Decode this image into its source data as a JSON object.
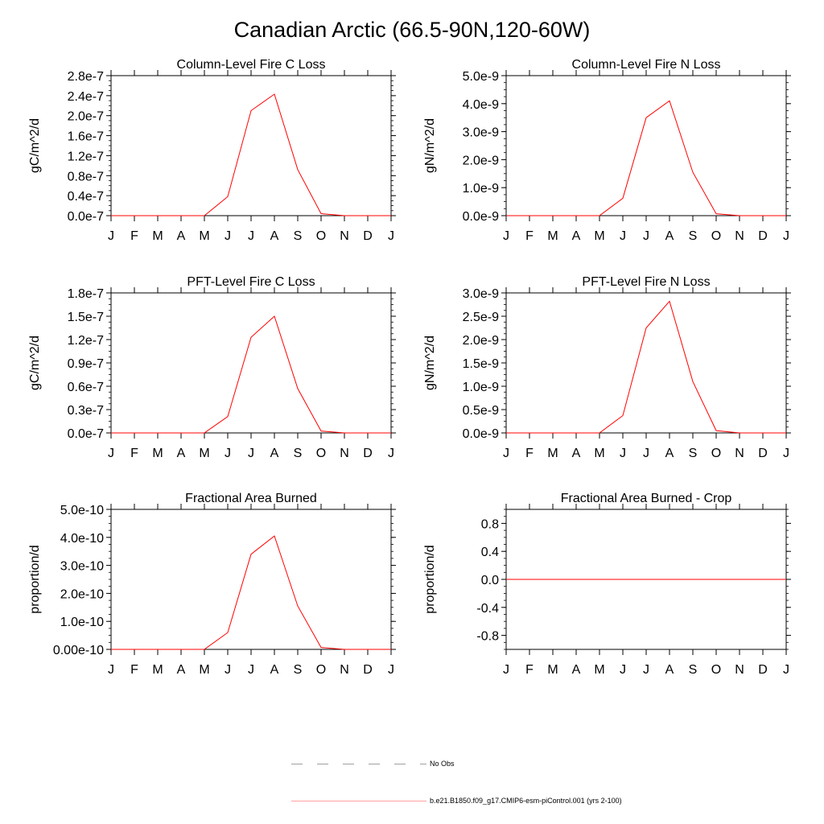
{
  "title": "Canadian Arctic (66.5-90N,120-60W)",
  "chart_data": [
    {
      "type": "line",
      "title": "Column-Level Fire C Loss",
      "ylabel": "gC/m^2/d",
      "categories": [
        "J",
        "F",
        "M",
        "A",
        "M",
        "J",
        "J",
        "A",
        "S",
        "O",
        "N",
        "D",
        "J"
      ],
      "ylim": [
        0,
        2.8e-07
      ],
      "yticks": [
        "0.0e-7",
        "0.4e-7",
        "0.8e-7",
        "1.2e-7",
        "1.6e-7",
        "2.0e-7",
        "2.4e-7",
        "2.8e-7"
      ],
      "series": [
        {
          "name": "b.e21.B1850.f09_g17.CMIP6-esm-piControl.001 (yrs 2-100)",
          "color": "#ff0000",
          "values": [
            0,
            0,
            0,
            0,
            0,
            3.8e-08,
            2.1e-07,
            2.43e-07,
            9.2e-08,
            4e-09,
            0,
            0,
            0
          ]
        }
      ]
    },
    {
      "type": "line",
      "title": "Column-Level Fire N Loss",
      "ylabel": "gN/m^2/d",
      "categories": [
        "J",
        "F",
        "M",
        "A",
        "M",
        "J",
        "J",
        "A",
        "S",
        "O",
        "N",
        "D",
        "J"
      ],
      "ylim": [
        0,
        5e-09
      ],
      "yticks": [
        "0.0e-9",
        "1.0e-9",
        "2.0e-9",
        "3.0e-9",
        "4.0e-9",
        "5.0e-9"
      ],
      "series": [
        {
          "name": "b.e21.B1850.f09_g17.CMIP6-esm-piControl.001 (yrs 2-100)",
          "color": "#ff0000",
          "values": [
            0,
            0,
            0,
            0,
            0,
            6.2e-10,
            3.5e-09,
            4.1e-09,
            1.55e-09,
            7e-11,
            0,
            0,
            0
          ]
        }
      ]
    },
    {
      "type": "line",
      "title": "PFT-Level Fire C Loss",
      "ylabel": "gC/m^2/d",
      "categories": [
        "J",
        "F",
        "M",
        "A",
        "M",
        "J",
        "J",
        "A",
        "S",
        "O",
        "N",
        "D",
        "J"
      ],
      "ylim": [
        0,
        1.8e-07
      ],
      "yticks": [
        "0.0e-7",
        "0.3e-7",
        "0.6e-7",
        "0.9e-7",
        "1.2e-7",
        "1.5e-7",
        "1.8e-7"
      ],
      "series": [
        {
          "name": "b.e21.B1850.f09_g17.CMIP6-esm-piControl.001 (yrs 2-100)",
          "color": "#ff0000",
          "values": [
            0,
            0,
            0,
            0,
            0,
            2.1e-08,
            1.23e-07,
            1.5e-07,
            5.7e-08,
            2.5e-09,
            0,
            0,
            0
          ]
        }
      ]
    },
    {
      "type": "line",
      "title": "PFT-Level Fire N Loss",
      "ylabel": "gN/m^2/d",
      "categories": [
        "J",
        "F",
        "M",
        "A",
        "M",
        "J",
        "J",
        "A",
        "S",
        "O",
        "N",
        "D",
        "J"
      ],
      "ylim": [
        0,
        3e-09
      ],
      "yticks": [
        "0.0e-9",
        "0.5e-9",
        "1.0e-9",
        "1.5e-9",
        "2.0e-9",
        "2.5e-9",
        "3.0e-9"
      ],
      "series": [
        {
          "name": "b.e21.B1850.f09_g17.CMIP6-esm-piControl.001 (yrs 2-100)",
          "color": "#ff0000",
          "values": [
            0,
            0,
            0,
            0,
            0,
            3.7e-10,
            2.25e-09,
            2.82e-09,
            1.1e-09,
            5e-11,
            0,
            0,
            0
          ]
        }
      ]
    },
    {
      "type": "line",
      "title": "Fractional Area Burned",
      "ylabel": "proportion/d",
      "categories": [
        "J",
        "F",
        "M",
        "A",
        "M",
        "J",
        "J",
        "A",
        "S",
        "O",
        "N",
        "D",
        "J"
      ],
      "ylim": [
        0,
        5e-10
      ],
      "yticks": [
        "0.00e-10",
        "1.0e-10",
        "2.0e-10",
        "3.0e-10",
        "4.0e-10",
        "5.0e-10"
      ],
      "series": [
        {
          "name": "b.e21.B1850.f09_g17.CMIP6-esm-piControl.001 (yrs 2-100)",
          "color": "#ff0000",
          "values": [
            0,
            0,
            0,
            0,
            0,
            6e-11,
            3.4e-10,
            4.05e-10,
            1.55e-10,
            7e-12,
            0,
            0,
            0
          ]
        }
      ]
    },
    {
      "type": "line",
      "title": "Fractional Area Burned - Crop",
      "ylabel": "proportion/d",
      "categories": [
        "J",
        "F",
        "M",
        "A",
        "M",
        "J",
        "J",
        "A",
        "S",
        "O",
        "N",
        "D",
        "J"
      ],
      "ylim": [
        -1.0,
        1.0
      ],
      "yticks": [
        "-0.8",
        "-0.4",
        "0.0",
        "0.4",
        "0.8"
      ],
      "ytick_values": [
        -0.8,
        -0.4,
        0.0,
        0.4,
        0.8
      ],
      "series": [
        {
          "name": "b.e21.B1850.f09_g17.CMIP6-esm-piControl.001 (yrs 2-100)",
          "color": "#ff0000",
          "values": [
            0,
            0,
            0,
            0,
            0,
            0,
            0,
            0,
            0,
            0,
            0,
            0,
            0
          ]
        }
      ]
    }
  ],
  "legend": {
    "entries": [
      {
        "label": "No Obs",
        "style": "dashed",
        "color": "#000000"
      },
      {
        "label": "b.e21.B1850.f09_g17.CMIP6-esm-piControl.001 (yrs 2-100)",
        "style": "solid",
        "color": "#ff0000"
      }
    ]
  }
}
